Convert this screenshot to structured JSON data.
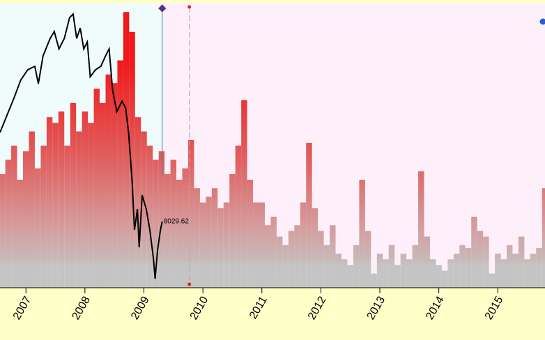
{
  "chart_data": {
    "type": "line",
    "xlim": [
      2006.56,
      2015.8
    ],
    "xticks": [
      2007,
      2008,
      2009,
      2010,
      2011,
      2012,
      2013,
      2014,
      2015
    ],
    "ylim": [
      6300,
      13730
    ],
    "y2lim": [
      0,
      100
    ],
    "series": [
      {
        "color": "#000000",
        "x": [
          2006.56,
          2006.68,
          2006.8,
          2006.91,
          2007.03,
          2007.15,
          2007.21,
          2007.29,
          2007.41,
          2007.48,
          2007.56,
          2007.65,
          2007.74,
          2007.8,
          2007.86,
          2007.92,
          2007.98,
          2008.04,
          2008.09,
          2008.18,
          2008.27,
          2008.35,
          2008.41,
          2008.47,
          2008.54,
          2008.63,
          2008.69,
          2008.74,
          2008.8,
          2008.84,
          2008.89,
          2008.92,
          2008.97,
          2009.04,
          2009.1,
          2009.16,
          2009.19,
          2009.23,
          2009.28,
          2009.31
        ],
        "values": [
          10359,
          10814,
          11269,
          11724,
          11997,
          12088,
          11633,
          12361,
          12816,
          12998,
          12543,
          12816,
          13362,
          13453,
          12816,
          13089,
          12543,
          12725,
          11815,
          11997,
          12088,
          12361,
          12543,
          11451,
          10905,
          11178,
          10996,
          10359,
          9085,
          7811,
          8357,
          7356,
          8721,
          8357,
          7811,
          7083,
          6537,
          7265,
          7811,
          8029.62
        ]
      },
      {
        "type": "histogram",
        "axis": "y2",
        "color": "#e83030",
        "bins": [
          2006.55,
          2006.65,
          2006.75,
          2006.85,
          2006.95,
          2007.05,
          2007.15,
          2007.25,
          2007.35,
          2007.45,
          2007.55,
          2007.65,
          2007.75,
          2007.85,
          2007.95,
          2008.05,
          2008.15,
          2008.25,
          2008.35,
          2008.45,
          2008.55,
          2008.65,
          2008.75,
          2008.85,
          2008.95,
          2009.05,
          2009.15,
          2009.25,
          2009.35,
          2009.45,
          2009.55,
          2009.65,
          2009.75,
          2009.85,
          2009.95,
          2010.05,
          2010.15,
          2010.25,
          2010.35,
          2010.45,
          2010.55,
          2010.65,
          2010.75,
          2010.85,
          2010.95,
          2011.05,
          2011.15,
          2011.25,
          2011.35,
          2011.45,
          2011.55,
          2011.65,
          2011.75,
          2011.85,
          2011.95,
          2012.05,
          2012.15,
          2012.25,
          2012.35,
          2012.45,
          2012.55,
          2012.65,
          2012.75,
          2012.85,
          2012.95,
          2013.05,
          2013.15,
          2013.25,
          2013.35,
          2013.45,
          2013.55,
          2013.65,
          2013.75,
          2013.85,
          2013.95,
          2014.05,
          2014.15,
          2014.25,
          2014.35,
          2014.45,
          2014.55,
          2014.65,
          2014.75,
          2014.85,
          2014.95,
          2015.05,
          2015.15,
          2015.25,
          2015.35,
          2015.45,
          2015.55,
          2015.65,
          2015.75,
          2015.85
        ],
        "values": [
          40,
          45,
          50,
          38,
          48,
          55,
          42,
          50,
          60,
          58,
          62,
          50,
          65,
          55,
          62,
          58,
          70,
          65,
          75,
          72,
          80,
          97,
          90,
          60,
          55,
          50,
          45,
          48,
          40,
          45,
          38,
          42,
          52,
          35,
          30,
          32,
          35,
          28,
          30,
          40,
          50,
          66,
          38,
          30,
          30,
          22,
          25,
          18,
          15,
          20,
          22,
          30,
          51,
          28,
          20,
          15,
          22,
          12,
          10,
          8,
          15,
          38,
          20,
          5,
          12,
          10,
          15,
          8,
          12,
          10,
          15,
          41,
          18,
          10,
          8,
          6,
          10,
          12,
          15,
          14,
          25,
          20,
          18,
          5,
          12,
          10,
          15,
          12,
          18,
          10,
          12,
          14,
          35
        ]
      }
    ],
    "markers": [
      2009.31,
      2009.77
    ],
    "annotation": {
      "text": "8029.62",
      "x": 2009.31,
      "y": 8029.62
    }
  }
}
